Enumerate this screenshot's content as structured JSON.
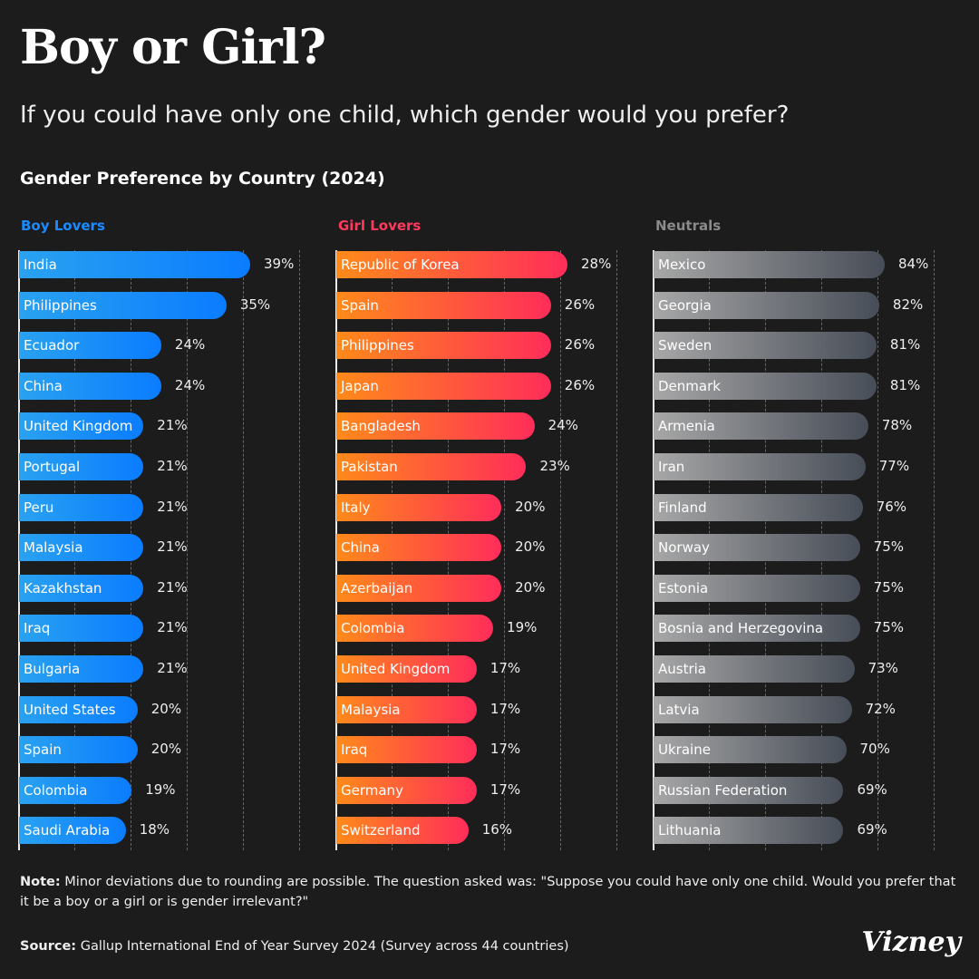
{
  "title": "Boy or Girl?",
  "subtitle": "If you could have only one child, which gender would you prefer?",
  "note_label": "Note:",
  "note": "Minor deviations due to rounding are possible. The question asked was: \"Suppose you could have only one child. Would you prefer that it be a boy or a girl or is gender irrelevant?\"",
  "source_label": "Source:",
  "source": "Gallup International End of Year Survey 2024 (Survey across 44 countries)",
  "logo": "Vizney",
  "chart_data": {
    "type": "bar",
    "title": "Gender Preference by Country (2024)",
    "orientation": "horizontal",
    "unit": "%",
    "grid": true,
    "panels": [
      {
        "name": "Boy Lovers",
        "color": "#1a8cff",
        "gradient": [
          "#2aa2f0",
          "#0a7cff"
        ],
        "categories": [
          "India",
          "Philippines",
          "Ecuador",
          "China",
          "United Kingdom",
          "Portugal",
          "Peru",
          "Malaysia",
          "Kazakhstan",
          "Iraq",
          "Bulgaria",
          "United States",
          "Spain",
          "Colombia",
          "Saudi Arabia"
        ],
        "values": [
          39,
          35,
          24,
          24,
          21,
          21,
          21,
          21,
          21,
          21,
          21,
          20,
          20,
          19,
          18
        ]
      },
      {
        "name": "Girl Lovers",
        "color": "#ff3a5c",
        "gradient": [
          "#ff8a1a",
          "#ff2d5a"
        ],
        "categories": [
          "Republic of Korea",
          "Spain",
          "Philippines",
          "Japan",
          "Bangladesh",
          "Pakistan",
          "Italy",
          "China",
          "Azerbaijan",
          "Colombia",
          "United Kingdom",
          "Malaysia",
          "Iraq",
          "Germany",
          "Switzerland"
        ],
        "values": [
          28,
          26,
          26,
          26,
          24,
          23,
          20,
          20,
          20,
          19,
          17,
          17,
          17,
          17,
          16
        ]
      },
      {
        "name": "Neutrals",
        "color": "#8a8a8a",
        "gradient": [
          "#a7a7a7",
          "#474d57"
        ],
        "categories": [
          "Mexico",
          "Georgia",
          "Sweden",
          "Denmark",
          "Armenia",
          "Iran",
          "Finland",
          "Norway",
          "Estonia",
          "Bosnia and Herzegovina",
          "Austria",
          "Latvia",
          "Ukraine",
          "Russian Federation",
          "Lithuania"
        ],
        "values": [
          84,
          82,
          81,
          81,
          78,
          77,
          76,
          75,
          75,
          75,
          73,
          72,
          70,
          69,
          69
        ]
      }
    ]
  }
}
